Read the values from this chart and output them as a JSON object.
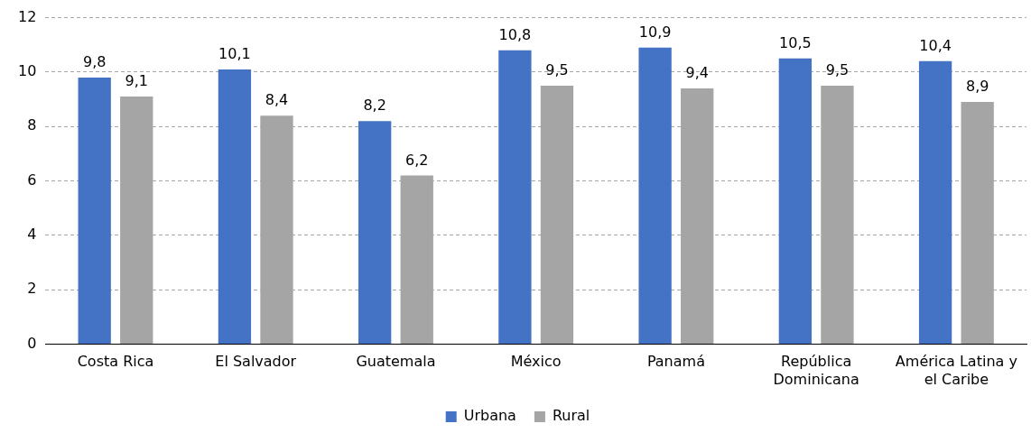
{
  "chart_data": {
    "type": "bar",
    "categories": [
      "Costa Rica",
      "El Salvador",
      "Guatemala",
      "México",
      "Panamá",
      "República Dominicana",
      "América Latina y el Caribe"
    ],
    "series": [
      {
        "name": "Urbana",
        "color": "#4472c4",
        "values": [
          9.8,
          10.1,
          8.2,
          10.8,
          10.9,
          10.5,
          10.4
        ],
        "value_labels": [
          "9,8",
          "10,1",
          "8,2",
          "10,8",
          "10,9",
          "10,5",
          "10,4"
        ]
      },
      {
        "name": "Rural",
        "color": "#a5a5a5",
        "values": [
          9.1,
          8.4,
          6.2,
          9.5,
          9.4,
          9.5,
          8.9
        ],
        "value_labels": [
          "9,1",
          "8,4",
          "6,2",
          "9,5",
          "9,4",
          "9,5",
          "8,9"
        ]
      }
    ],
    "ylim": [
      0,
      12
    ],
    "yticks": [
      0,
      2,
      4,
      6,
      8,
      10,
      12
    ],
    "grid": "y",
    "legend": "bottom"
  }
}
